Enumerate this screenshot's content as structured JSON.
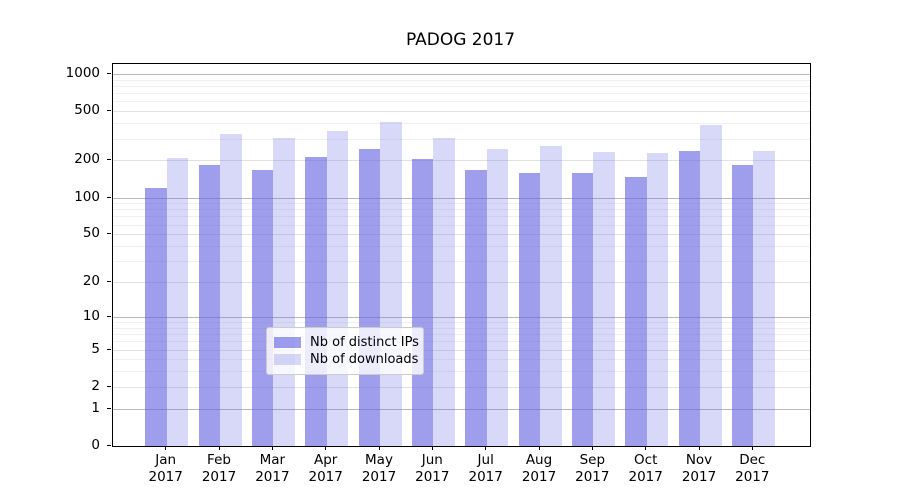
{
  "chart_data": {
    "type": "bar",
    "title": "PADOG 2017",
    "categories": [
      "Jan",
      "Feb",
      "Mar",
      "Apr",
      "May",
      "Jun",
      "Jul",
      "Aug",
      "Sep",
      "Oct",
      "Nov",
      "Dec"
    ],
    "year": "2017",
    "series": [
      {
        "name": "Nb of distinct IPs",
        "color": "rgba(98,98,226,0.62)",
        "values": [
          119,
          185,
          166,
          215,
          249,
          206,
          167,
          159,
          159,
          147,
          239,
          184
        ]
      },
      {
        "name": "Nb of downloads",
        "color": "rgba(98,98,226,0.25)",
        "values": [
          209,
          325,
          302,
          346,
          409,
          305,
          246,
          262,
          234,
          228,
          390,
          239
        ]
      }
    ],
    "y_axis": {
      "scale": "log(1+y)",
      "ticks": [
        1000,
        500,
        200,
        100,
        50,
        20,
        10,
        5,
        2,
        1,
        0
      ],
      "ylim": [
        0,
        1200
      ],
      "gridline_values_major": [
        1,
        10,
        100,
        1000
      ],
      "gridline_values_mid": [
        2,
        5,
        20,
        50,
        200,
        500
      ],
      "gridline_values_minor": [
        3,
        4,
        6,
        7,
        8,
        9,
        30,
        40,
        60,
        70,
        80,
        90,
        300,
        400,
        600,
        700,
        800,
        900
      ]
    },
    "grid": true,
    "legend_position": "lower center",
    "colors": {
      "axis": "#000000",
      "grid_major": "#b9b9b9",
      "grid_minor": "#f0f0f0"
    }
  }
}
